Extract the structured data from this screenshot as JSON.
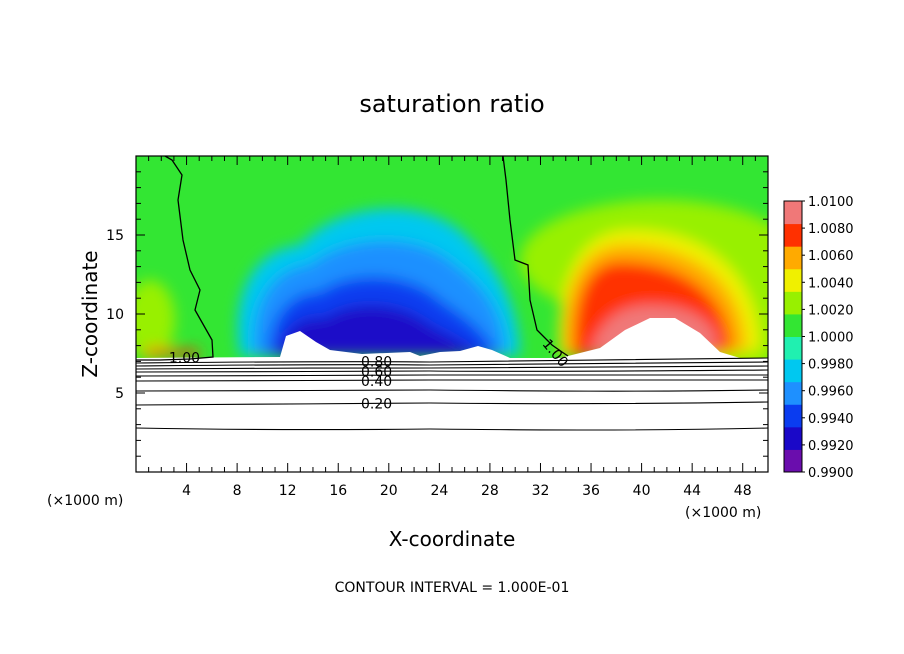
{
  "chart_data": {
    "type": "heatmap",
    "title": "saturation ratio",
    "xlabel": "X-coordinate",
    "ylabel": "Z-coordinate",
    "x_unit": "(×1000 m)",
    "xlim": [
      0,
      50
    ],
    "ylim": [
      0,
      20
    ],
    "x_ticks": [
      4,
      8,
      12,
      16,
      20,
      24,
      28,
      32,
      36,
      40,
      44,
      48
    ],
    "y_ticks": [
      5,
      10,
      15
    ],
    "colorbar": {
      "min": 0.99,
      "max": 1.01,
      "tick_labels": [
        "1.0100",
        "1.0080",
        "1.0060",
        "1.0040",
        "1.0020",
        "1.0000",
        "0.9980",
        "0.9960",
        "0.9940",
        "0.9920",
        "0.9900"
      ],
      "colors": [
        "#6a0dad",
        "#1a08c8",
        "#0a3cf0",
        "#1e90ff",
        "#00c8f0",
        "#20f0b0",
        "#33e633",
        "#98f000",
        "#f0f000",
        "#ffaa00",
        "#ff3000",
        "#f07878"
      ]
    },
    "contour_labels": [
      {
        "text": "1.00",
        "x": 2.6,
        "z": 7.25
      },
      {
        "text": "1.00",
        "x": 32.4,
        "z": 8.3
      },
      {
        "text": "0.80",
        "x": 17.8,
        "z": 7.0
      },
      {
        "text": "0.60",
        "x": 17.8,
        "z": 6.35
      },
      {
        "text": "0.40",
        "x": 17.8,
        "z": 5.75
      },
      {
        "text": "0.20",
        "x": 17.8,
        "z": 4.35
      }
    ],
    "contour_interval_text": "CONTOUR INTERVAL = 1.000E-01"
  }
}
